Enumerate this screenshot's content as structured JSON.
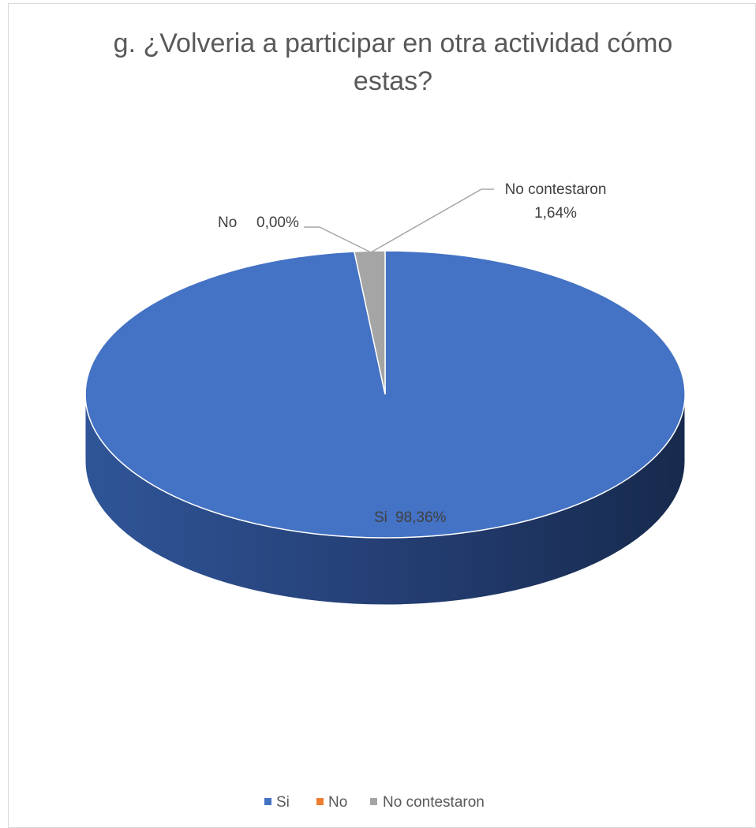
{
  "chart_data": {
    "type": "pie",
    "style": "3d",
    "title": "g. ¿Volveria a participar en otra actividad cómo estas?",
    "title_lines": [
      "g. ¿Volveria a participar en otra actividad cómo",
      "estas?"
    ],
    "categories": [
      "Si",
      "No",
      "No contestaron"
    ],
    "values": [
      98.36,
      0.0,
      1.64
    ],
    "value_labels": [
      "98,36%",
      "0,00%",
      "1,64%"
    ],
    "colors": [
      "#4472C4",
      "#ED7D31",
      "#A5A5A5"
    ],
    "legend": {
      "position": "bottom",
      "entries": [
        "Si",
        "No",
        "No contestaron"
      ]
    }
  }
}
